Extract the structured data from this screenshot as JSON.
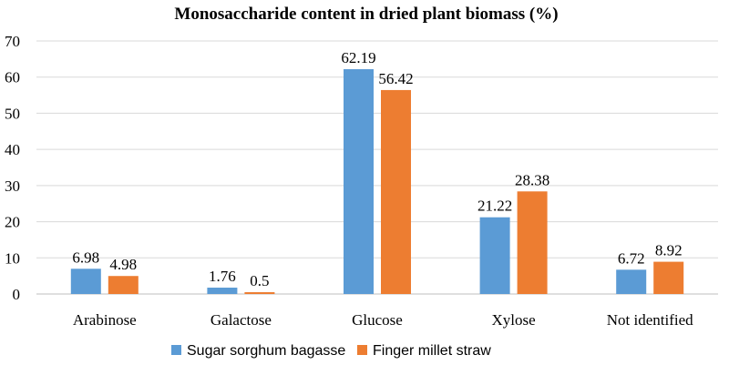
{
  "chart_data": {
    "type": "bar",
    "title": "Monosaccharide content in dried plant biomass (%)",
    "categories": [
      "Arabinose",
      "Galactose",
      "Glucose",
      "Xylose",
      "Not identified"
    ],
    "series": [
      {
        "name": "Sugar sorghum bagasse",
        "color": "#5b9bd5",
        "values": [
          6.98,
          1.76,
          62.19,
          21.22,
          6.72
        ],
        "labels": [
          "6.98",
          "1.76",
          "62.19",
          "21.22",
          "6.72"
        ]
      },
      {
        "name": "Finger millet straw",
        "color": "#ed7d31",
        "values": [
          4.98,
          0.5,
          56.42,
          28.38,
          8.92
        ],
        "labels": [
          "4.98",
          "0.5",
          "56.42",
          "28.38",
          "8.92"
        ]
      }
    ],
    "ylim": [
      0,
      70
    ],
    "yticks": [
      "0",
      "10",
      "20",
      "30",
      "40",
      "50",
      "60",
      "70"
    ],
    "grid": true,
    "legend_position": "bottom"
  }
}
